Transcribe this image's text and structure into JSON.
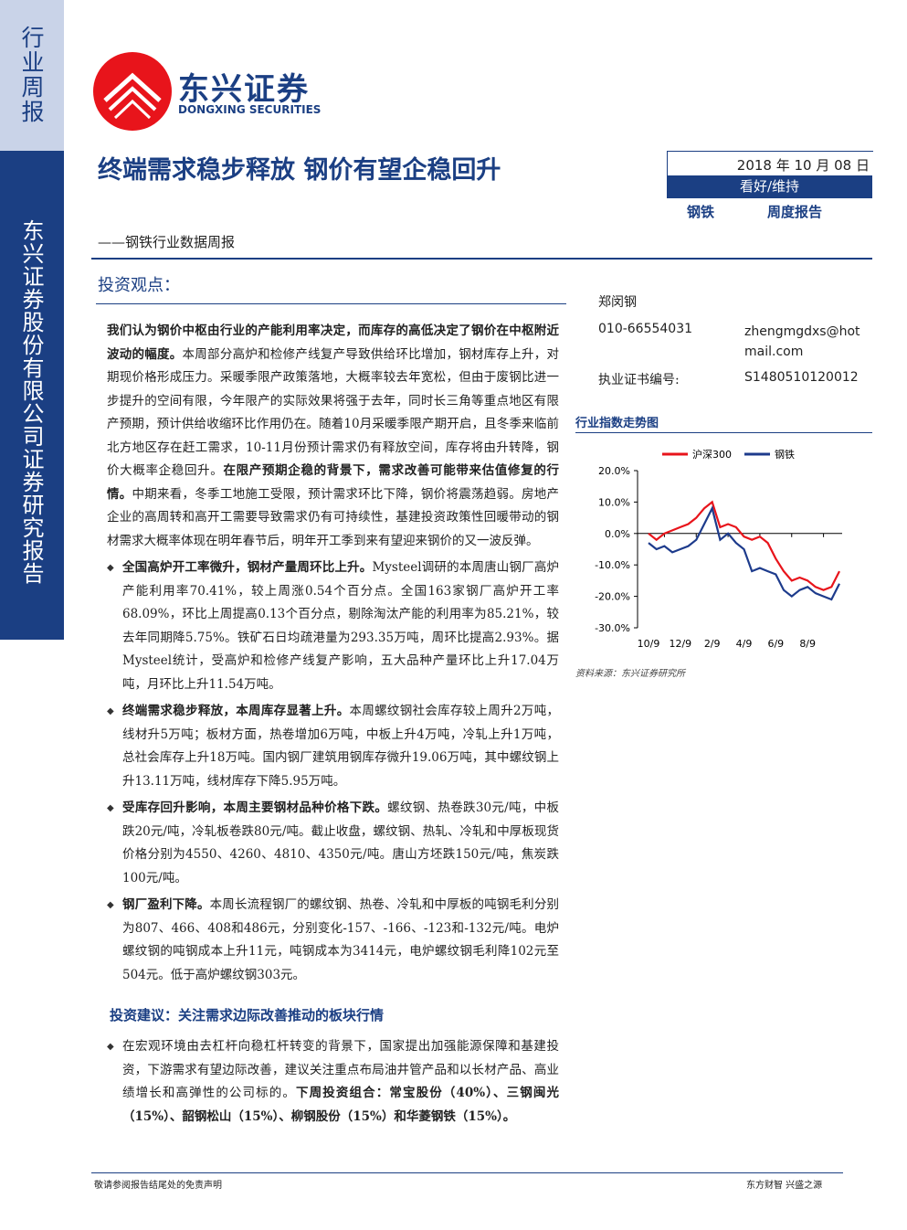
{
  "sidebar": {
    "type_label": "行业周报",
    "company": "东兴证券股份有限公司证券研究报告"
  },
  "logo": {
    "name": "东兴证券",
    "english": "DONGXING SECURITIES"
  },
  "header": {
    "title": "终端需求稳步释放 钢价有望企稳回升",
    "subtitle": "——钢铁行业数据周报",
    "date": "2018 年 10 月 08 日",
    "rating": "看好/维持",
    "sector": "钢铁",
    "report_type": "周度报告"
  },
  "analyst": {
    "name": "郑闵钢",
    "phone": "010-66554031",
    "email": "zhengmgdxs@hotmail.com",
    "cert_label": "执业证书编号:",
    "cert_no": "S1480510120012"
  },
  "section1": {
    "heading": "投资观点：",
    "paragraphs": [
      [
        {
          "text": "我们认为钢价中枢由行业的产能利用率决定，而库存的高低决定了钢价在中枢附近波动的幅度。",
          "strong": true
        },
        {
          "text": "本周部分高炉和检修产线复产导致供给环比增加，钢材库存上升，对期现价格形成压力。采暖季限产政策落地，大概率较去年宽松，但由于废钢比进一步提升的空间有限，今年限产的实际效果将强于去年，同时长三角等重点地区有限产预期，预计供给收缩环比作用仍在。随着10月采暖季限产期开启，且冬季来临前北方地区存在赶工需求，10-11月份预计需求仍有释放空间，库存将由升转降，钢价大概率企稳回升。",
          "strong": false
        },
        {
          "text": "在限产预期企稳的背景下，需求改善可能带来估值修复的行情。",
          "strong": true
        },
        {
          "text": "中期来看，冬季工地施工受限，预计需求环比下降，钢价将震荡趋弱。房地产企业的高周转和高开工需要导致需求仍有可持续性，基建投资政策性回暖带动的钢材需求大概率体现在明年春节后，明年开工季到来有望迎来钢价的又一波反弹。",
          "strong": false
        }
      ]
    ],
    "bullets": [
      [
        {
          "text": "全国高炉开工率微升，钢材产量周环比上升。",
          "strong": true
        },
        {
          "text": "Mysteel调研的本周唐山钢厂高炉产能利用率70.41%，较上周涨0.54个百分点。全国163家钢厂高炉开工率68.09%，环比上周提高0.13个百分点，剔除淘汰产能的利用率为85.21%，较去年同期降5.75%。铁矿石日均疏港量为293.35万吨，周环比提高2.93%。据Mysteel统计，受高炉和检修产线复产影响，五大品种产量环比上升17.04万吨，月环比上升11.54万吨。",
          "strong": false
        }
      ],
      [
        {
          "text": "终端需求稳步释放，本周库存显著上升。",
          "strong": true
        },
        {
          "text": "本周螺纹钢社会库存较上周升2万吨，线材升5万吨；板材方面，热卷增加6万吨，中板上升4万吨，冷轧上升1万吨，总社会库存上升18万吨。国内钢厂建筑用钢库存微升19.06万吨，其中螺纹钢上升13.11万吨，线材库存下降5.95万吨。",
          "strong": false
        }
      ],
      [
        {
          "text": "受库存回升影响，本周主要钢材品种价格下跌。",
          "strong": true
        },
        {
          "text": "螺纹钢、热卷跌30元/吨，中板跌20元/吨，冷轧板卷跌80元/吨。截止收盘，螺纹钢、热轧、冷轧和中厚板现货价格分别为4550、4260、4810、4350元/吨。唐山方坯跌150元/吨，焦炭跌100元/吨。",
          "strong": false
        }
      ],
      [
        {
          "text": "钢厂盈利下降。",
          "strong": true
        },
        {
          "text": "本周长流程钢厂的螺纹钢、热卷、冷轧和中厚板的吨钢毛利分别为807、466、408和486元，分别变化-157、-166、-123和-132元/吨。电炉螺纹钢的吨钢成本上升11元，吨钢成本为3414元，电炉螺纹钢毛利降102元至504元。低于高炉螺纹钢303元。",
          "strong": false
        }
      ]
    ]
  },
  "section2": {
    "heading": "投资建议：关注需求边际改善推动的板块行情",
    "bullets": [
      [
        {
          "text": "在宏观环境由去杠杆向稳杠杆转变的背景下，国家提出加强能源保障和基建投资，下游需求有望边际改善，建议关注重点布局油井管产品和以长材产品、高业绩增长和高弹性的公司标的。",
          "strong": false
        },
        {
          "text": "下周投资组合：常宝股份（40%）、三钢闽光（15%）、韶钢松山（15%）、柳钢股份（15%）和华菱钢铁（15%）。",
          "strong": true
        }
      ]
    ]
  },
  "chart_data": {
    "type": "line",
    "title": "行业指数走势图",
    "source": "资料来源：东兴证券研究所",
    "categories": [
      "10/9",
      null,
      null,
      null,
      "12/9",
      null,
      null,
      null,
      "2/9",
      null,
      null,
      null,
      "4/9",
      null,
      null,
      null,
      "6/9",
      null,
      null,
      null,
      "8/9",
      null,
      null,
      null,
      null
    ],
    "series": [
      {
        "name": "沪深300",
        "color": "#e8141b",
        "values": [
          0,
          -2,
          0,
          1,
          2,
          3,
          5,
          8,
          10,
          2,
          3,
          2,
          -1,
          -2,
          -1,
          -3,
          -8,
          -12,
          -15,
          -14,
          -15,
          -17,
          -18,
          -17,
          -12
        ]
      },
      {
        "name": "钢铁",
        "color": "#1d3b8c",
        "values": [
          -3,
          -5,
          -4,
          -6,
          -5,
          -4,
          -2,
          3,
          8,
          -2,
          0,
          -3,
          -5,
          -12,
          -11,
          -12,
          -13,
          -18,
          -20,
          -18,
          -17,
          -19,
          -20,
          -21,
          -16
        ]
      }
    ],
    "ylim": [
      -30,
      20
    ],
    "yticks": [
      {
        "value": 20,
        "label": "20.0%"
      },
      {
        "value": 10,
        "label": "10.0%"
      },
      {
        "value": 0,
        "label": "0.0%"
      },
      {
        "value": -10,
        "label": "-10.0%"
      },
      {
        "value": -20,
        "label": "-20.0%"
      },
      {
        "value": -30,
        "label": "-30.0%"
      }
    ]
  },
  "footer": {
    "disclaimer": "敬请参阅报告结尾处的免责声明",
    "motto": "东方财智 兴盛之源"
  }
}
